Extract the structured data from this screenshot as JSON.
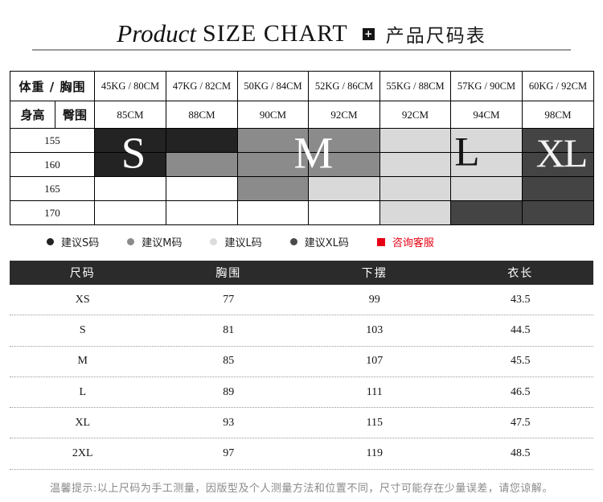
{
  "title": {
    "word_italic": "Product",
    "word_caps": "SIZE CHART",
    "icon_glyph": "+",
    "chinese": "产品尺码表"
  },
  "size_grid": {
    "corner_label": "体重 / 胸围",
    "height_label": "身高",
    "hip_label": "臀围",
    "columns": [
      {
        "weight_bust": "45KG / 80CM",
        "hip": "85CM"
      },
      {
        "weight_bust": "47KG / 82CM",
        "hip": "88CM"
      },
      {
        "weight_bust": "50KG / 84CM",
        "hip": "90CM"
      },
      {
        "weight_bust": "52KG / 86CM",
        "hip": "92CM"
      },
      {
        "weight_bust": "55KG / 88CM",
        "hip": "92CM"
      },
      {
        "weight_bust": "57KG / 90CM",
        "hip": "94CM"
      },
      {
        "weight_bust": "60KG / 92CM",
        "hip": "98CM"
      }
    ],
    "rows": [
      {
        "height": "155",
        "sizes": [
          "S",
          "S",
          "M",
          "M",
          "L",
          "L",
          "XL"
        ]
      },
      {
        "height": "160",
        "sizes": [
          "S",
          "M",
          "M",
          "M",
          "L",
          "L",
          "XL"
        ]
      },
      {
        "height": "165",
        "sizes": [
          "",
          "",
          "M",
          "L",
          "L",
          "L",
          "XL"
        ]
      },
      {
        "height": "170",
        "sizes": [
          "",
          "",
          "",
          "",
          "L",
          "XL",
          "XL"
        ]
      }
    ],
    "size_colors": {
      "S": "#232323",
      "M": "#8b8b8b",
      "L": "#d9d9d9",
      "XL": "#444444",
      "": "#ffffff"
    },
    "overlay_letters": [
      {
        "label": "S",
        "color": "#ffffff"
      },
      {
        "label": "M",
        "color": "#ffffff"
      },
      {
        "label": "L",
        "color": "#141414"
      },
      {
        "label": "XL",
        "color": "#f2f2f2"
      }
    ]
  },
  "legend": {
    "items": [
      {
        "shape": "circle",
        "color": "#232323",
        "label": "建议S码",
        "text_color": "#222222"
      },
      {
        "shape": "circle",
        "color": "#8b8b8b",
        "label": "建议M码",
        "text_color": "#222222"
      },
      {
        "shape": "circle",
        "color": "#dcdcdc",
        "label": "建议L码",
        "text_color": "#222222"
      },
      {
        "shape": "circle",
        "color": "#4a4a4a",
        "label": "建议XL码",
        "text_color": "#222222"
      },
      {
        "shape": "square",
        "color": "#e60012",
        "label": "咨询客服",
        "text_color": "#e60012"
      }
    ]
  },
  "measure_table": {
    "header_bg": "#2b2b2b",
    "headers": [
      "尺码",
      "胸围",
      "下摆",
      "衣长"
    ],
    "rows": [
      [
        "XS",
        "77",
        "99",
        "43.5"
      ],
      [
        "S",
        "81",
        "103",
        "44.5"
      ],
      [
        "M",
        "85",
        "107",
        "45.5"
      ],
      [
        "L",
        "89",
        "111",
        "46.5"
      ],
      [
        "XL",
        "93",
        "115",
        "47.5"
      ],
      [
        "2XL",
        "97",
        "119",
        "48.5"
      ]
    ]
  },
  "footer_note": "温馨提示:以上尺码为手工测量，因版型及个人测量方法和位置不同，尺寸可能存在少量误差，请您谅解。"
}
